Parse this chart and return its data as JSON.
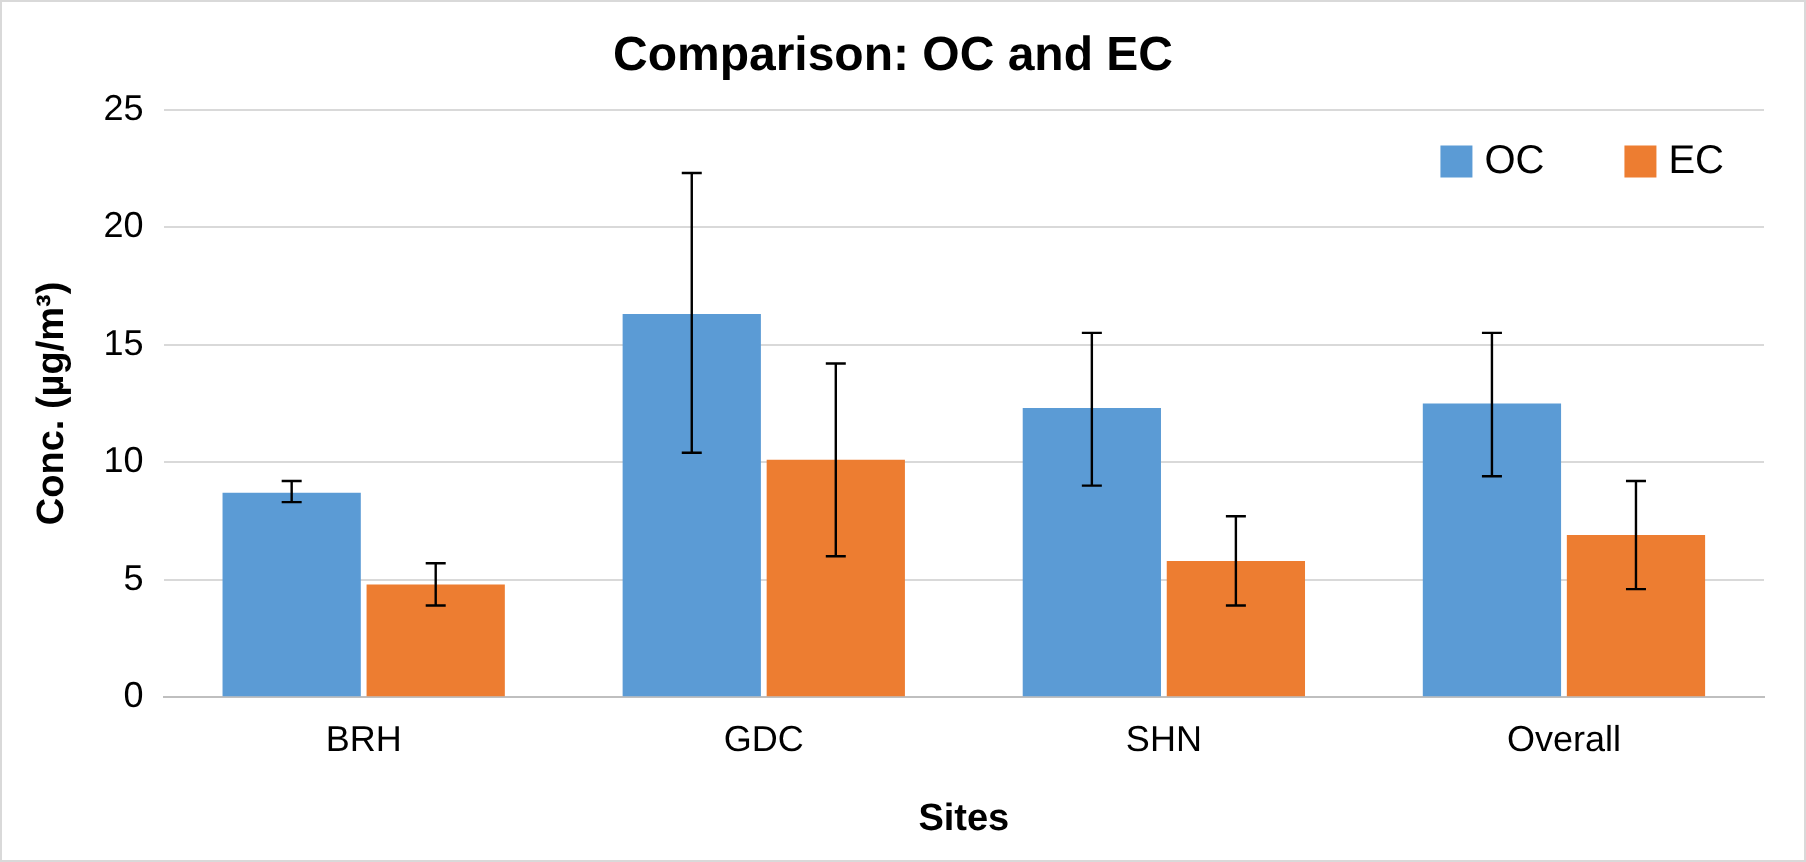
{
  "chart_data": {
    "type": "bar",
    "title": "Comparison: OC and EC",
    "xlabel": "Sites",
    "ylabel": "Conc. (µg/m³)",
    "categories": [
      "BRH",
      "GDC",
      "SHN",
      "Overall"
    ],
    "series": [
      {
        "name": "OC",
        "color": "#5b9bd5",
        "values": [
          8.7,
          16.3,
          12.3,
          12.5
        ],
        "errors": [
          [
            8.3,
            9.2
          ],
          [
            10.4,
            22.3
          ],
          [
            9.0,
            15.5
          ],
          [
            9.4,
            15.5
          ]
        ]
      },
      {
        "name": "EC",
        "color": "#ed7d31",
        "values": [
          4.8,
          10.1,
          5.8,
          6.9
        ],
        "errors": [
          [
            3.9,
            5.7
          ],
          [
            6.0,
            14.2
          ],
          [
            3.9,
            7.7
          ],
          [
            4.6,
            9.2
          ]
        ]
      }
    ],
    "ylim": [
      0,
      25
    ],
    "yticks": [
      0,
      5,
      10,
      15,
      20,
      25
    ],
    "grid": "y",
    "legend": "top right"
  }
}
